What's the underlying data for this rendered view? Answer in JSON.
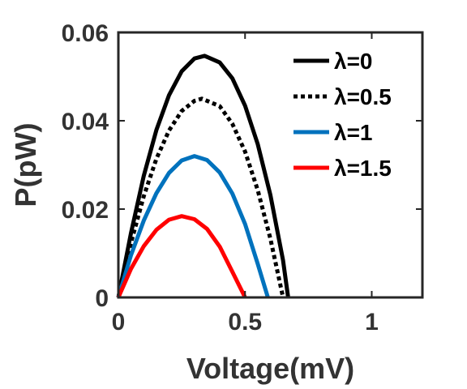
{
  "chart_data": {
    "type": "line",
    "xlabel": "Voltage(mV)",
    "ylabel": "P(pW)",
    "xlim": [
      0,
      1.2
    ],
    "ylim": [
      0,
      0.06
    ],
    "x_ticks": [
      0,
      0.5,
      1
    ],
    "x_tick_labels": [
      "0",
      "0.5",
      "1"
    ],
    "y_ticks": [
      0,
      0.02,
      0.04,
      0.06
    ],
    "y_tick_labels": [
      "0",
      "0.02",
      "0.04",
      "0.06"
    ],
    "grid": false,
    "legend_position": "top-right",
    "series": [
      {
        "name": "λ=0",
        "color": "#000000",
        "dash": "solid",
        "x": [
          0,
          0.05,
          0.1,
          0.15,
          0.2,
          0.25,
          0.3,
          0.34,
          0.4,
          0.45,
          0.5,
          0.55,
          0.6,
          0.65,
          0.67
        ],
        "y": [
          0,
          0.0146,
          0.0275,
          0.0379,
          0.0458,
          0.0512,
          0.0541,
          0.0547,
          0.0532,
          0.0496,
          0.0434,
          0.0347,
          0.0232,
          0.0084,
          0
        ]
      },
      {
        "name": "λ=0.5",
        "color": "#000000",
        "dash": "dotted",
        "x": [
          0,
          0.05,
          0.1,
          0.15,
          0.2,
          0.25,
          0.3,
          0.33,
          0.4,
          0.45,
          0.5,
          0.55,
          0.6,
          0.65
        ],
        "y": [
          0,
          0.0124,
          0.0229,
          0.0314,
          0.0378,
          0.0422,
          0.0445,
          0.045,
          0.0433,
          0.0393,
          0.033,
          0.0243,
          0.0133,
          0
        ]
      },
      {
        "name": "λ=1",
        "color": "#0072BD",
        "dash": "solid",
        "x": [
          0,
          0.05,
          0.1,
          0.15,
          0.2,
          0.25,
          0.3,
          0.35,
          0.4,
          0.45,
          0.5,
          0.55,
          0.59
        ],
        "y": [
          0,
          0.0096,
          0.0174,
          0.0236,
          0.0282,
          0.031,
          0.032,
          0.0311,
          0.0283,
          0.0235,
          0.0166,
          0.0076,
          0
        ]
      },
      {
        "name": "λ=1.5",
        "color": "#FF0000",
        "dash": "solid",
        "x": [
          0,
          0.05,
          0.1,
          0.15,
          0.2,
          0.25,
          0.3,
          0.35,
          0.4,
          0.45,
          0.5
        ],
        "y": [
          0,
          0.0065,
          0.0116,
          0.0153,
          0.0176,
          0.0184,
          0.0177,
          0.0155,
          0.0115,
          0.0058,
          0
        ]
      }
    ]
  }
}
